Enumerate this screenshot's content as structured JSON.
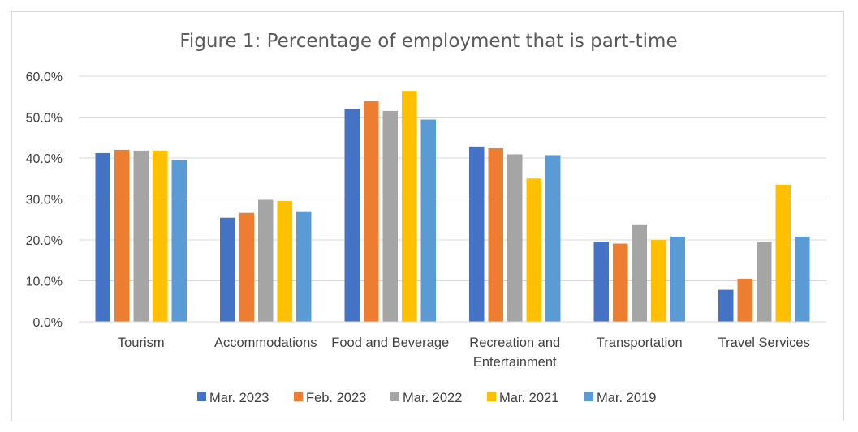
{
  "chart_data": {
    "type": "bar",
    "title": "Figure 1: Percentage of employment that is part-time",
    "xlabel": "",
    "ylabel": "",
    "categories": [
      "Tourism",
      "Accommodations",
      "Food and Beverage",
      "Recreation and Entertainment",
      "Transportation",
      "Travel Services"
    ],
    "category_lines": [
      [
        "Tourism"
      ],
      [
        "Accommodations"
      ],
      [
        "Food and Beverage"
      ],
      [
        "Recreation and",
        "Entertainment"
      ],
      [
        "Transportation"
      ],
      [
        "Travel Services"
      ]
    ],
    "ylim": [
      0,
      60
    ],
    "yticks": [
      0,
      10,
      20,
      30,
      40,
      50,
      60
    ],
    "ytick_labels": [
      "0.0%",
      "10.0%",
      "20.0%",
      "30.0%",
      "40.0%",
      "50.0%",
      "60.0%"
    ],
    "grid": true,
    "legend_position": "bottom",
    "series": [
      {
        "name": "Mar. 2023",
        "color": "#4472c4",
        "values": [
          41.2,
          25.4,
          52.0,
          42.8,
          19.6,
          7.8
        ]
      },
      {
        "name": "Feb. 2023",
        "color": "#ed7d31",
        "values": [
          42.0,
          26.6,
          53.9,
          42.4,
          19.1,
          10.5
        ]
      },
      {
        "name": "Mar. 2022",
        "color": "#a5a5a5",
        "values": [
          41.8,
          29.8,
          51.5,
          40.9,
          23.8,
          19.6
        ]
      },
      {
        "name": "Mar. 2021",
        "color": "#ffc000",
        "values": [
          41.8,
          29.5,
          56.4,
          35.0,
          20.0,
          33.5
        ]
      },
      {
        "name": "Mar. 2019",
        "color": "#5b9bd5",
        "values": [
          39.5,
          27.0,
          49.4,
          40.7,
          20.8,
          20.8
        ]
      }
    ]
  }
}
